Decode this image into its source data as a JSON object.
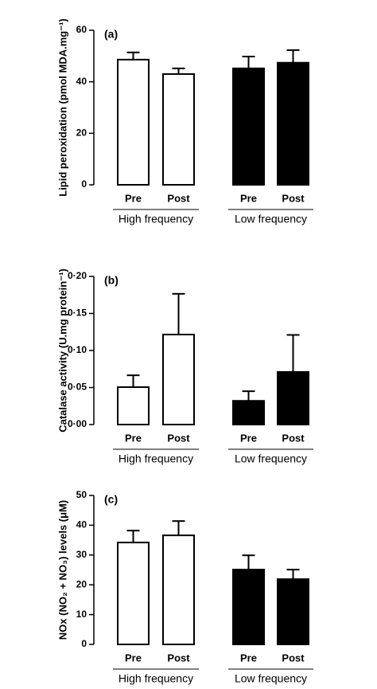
{
  "chart_data": [
    {
      "type": "bar",
      "panel_label": "(a)",
      "ylabel": "Lipid peroxidation (pmol MDA.mg⁻¹)",
      "categories": [
        "Pre",
        "Post",
        "Pre",
        "Post"
      ],
      "groups": [
        "High frequency",
        "Low frequency"
      ],
      "values": [
        48.6,
        43,
        45.2,
        47.4
      ],
      "errors": [
        2.8,
        2.2,
        4.6,
        4.9
      ],
      "colors": [
        "#ffffff",
        "#ffffff",
        "#000000",
        "#000000"
      ],
      "ylim": [
        0,
        60
      ],
      "yticks": [
        0,
        20,
        40,
        60
      ]
    },
    {
      "type": "bar",
      "panel_label": "(b)",
      "ylabel": "Catalase activity (U.mg protein⁻¹)",
      "categories": [
        "Pre",
        "Post",
        "Pre",
        "Post"
      ],
      "groups": [
        "High frequency",
        "Low frequency"
      ],
      "values": [
        0.0505,
        0.1215,
        0.032,
        0.071
      ],
      "errors": [
        0.016,
        0.055,
        0.013,
        0.05
      ],
      "colors": [
        "#ffffff",
        "#ffffff",
        "#000000",
        "#000000"
      ],
      "ylim": [
        0,
        0.2
      ],
      "yticks": [
        {
          "value": 0,
          "label": "0·00"
        },
        {
          "value": 0.05,
          "label": "0·05"
        },
        {
          "value": 0.1,
          "label": "0·10"
        },
        {
          "value": 0.15,
          "label": "0·15"
        },
        {
          "value": 0.2,
          "label": "0·20"
        }
      ]
    },
    {
      "type": "bar",
      "panel_label": "(c)",
      "ylabel": "NOx (NO₂ + NO₃) levels (μM)",
      "categories": [
        "Pre",
        "Post",
        "Pre",
        "Post"
      ],
      "groups": [
        "High frequency",
        "Low frequency"
      ],
      "values": [
        34.2,
        36.6,
        25.1,
        21.9
      ],
      "errors": [
        4,
        4.8,
        4.8,
        3.2
      ],
      "colors": [
        "#ffffff",
        "#ffffff",
        "#000000",
        "#000000"
      ],
      "ylim": [
        0,
        50
      ],
      "yticks": [
        0,
        10,
        20,
        30,
        40,
        50
      ]
    }
  ]
}
